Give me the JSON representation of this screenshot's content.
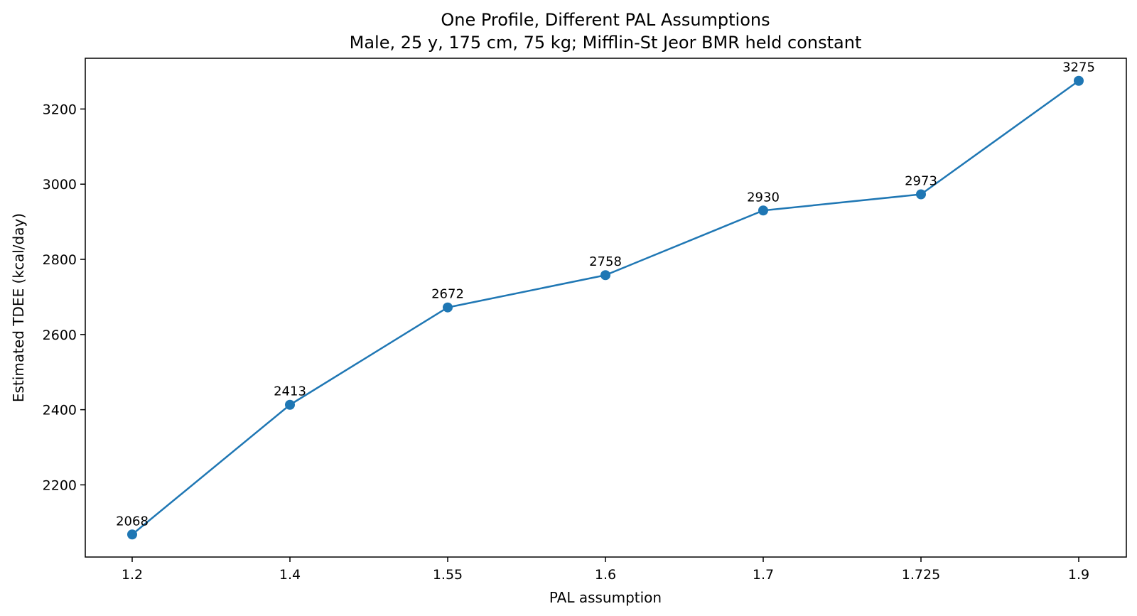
{
  "chart_data": {
    "type": "line",
    "title": "One Profile, Different PAL Assumptions",
    "subtitle": "Male, 25 y, 175 cm, 75 kg; Mifflin-St Jeor BMR held constant",
    "xlabel": "PAL assumption",
    "ylabel": "Estimated TDEE (kcal/day)",
    "categories": [
      "1.2",
      "1.4",
      "1.55",
      "1.6",
      "1.7",
      "1.725",
      "1.9"
    ],
    "series": [
      {
        "values": [
          2068,
          2413,
          2672,
          2758,
          2930,
          2973,
          3275
        ],
        "labels": [
          "2068",
          "2413",
          "2672",
          "2758",
          "2930",
          "2973",
          "3275"
        ],
        "color": "#1f77b4",
        "marker": "circle"
      }
    ],
    "yticks": [
      "2200",
      "2400",
      "2600",
      "2800",
      "3000",
      "3200"
    ],
    "ylim": [
      2008,
      3335
    ],
    "grid": false,
    "legend": "none"
  }
}
